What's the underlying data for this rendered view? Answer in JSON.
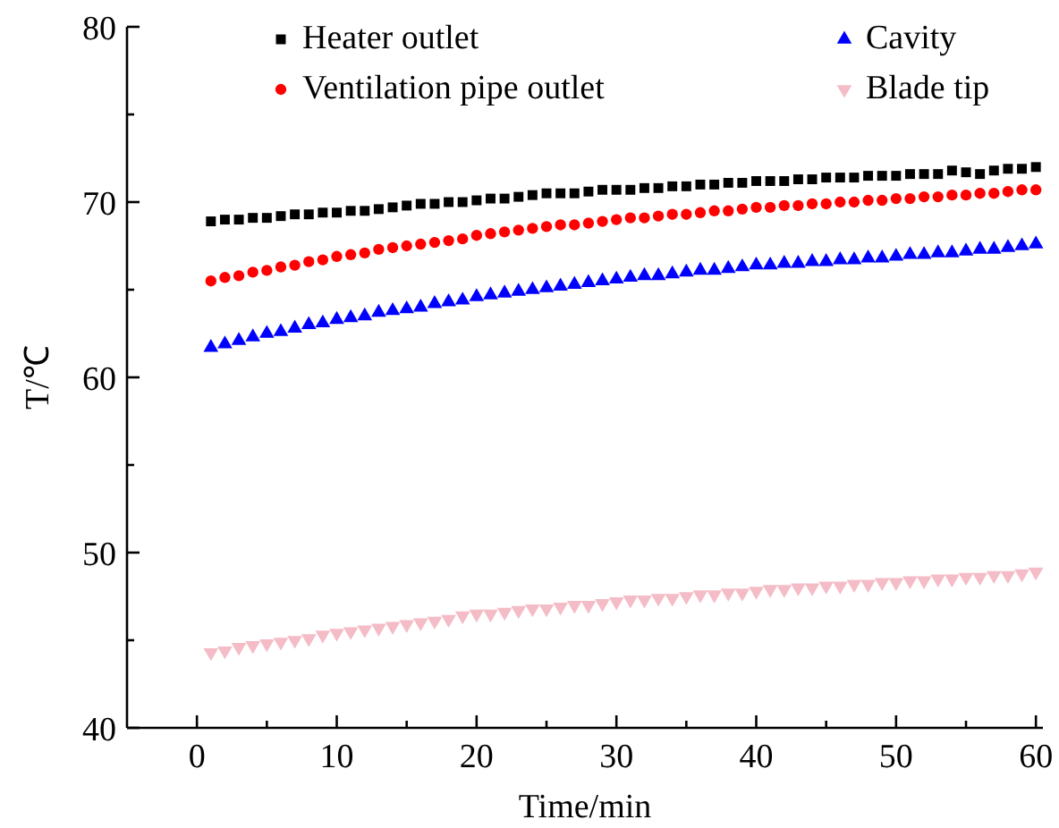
{
  "chart_data": {
    "type": "scatter",
    "xlabel": "Time/min",
    "ylabel": "T/℃",
    "xlim": [
      -5,
      60.5
    ],
    "ylim": [
      40,
      80
    ],
    "xticks": [
      0,
      {
        "value": 5,
        "label": null
      },
      10,
      {
        "value": 15,
        "label": null
      },
      20,
      {
        "value": 25,
        "label": null
      },
      30,
      {
        "value": 35,
        "label": null
      },
      40,
      {
        "value": 45,
        "label": null
      },
      50,
      {
        "value": 55,
        "label": null
      },
      60
    ],
    "yticks": [
      40,
      {
        "value": 45,
        "label": null
      },
      50,
      {
        "value": 55,
        "label": null
      },
      60,
      {
        "value": 65,
        "label": null
      },
      70,
      {
        "value": 75,
        "label": null
      },
      80
    ],
    "grid": false,
    "legend": "top",
    "x": [
      1,
      2,
      3,
      4,
      5,
      6,
      7,
      8,
      9,
      10,
      11,
      12,
      13,
      14,
      15,
      16,
      17,
      18,
      19,
      20,
      21,
      22,
      23,
      24,
      25,
      26,
      27,
      28,
      29,
      30,
      31,
      32,
      33,
      34,
      35,
      36,
      37,
      38,
      39,
      40,
      41,
      42,
      43,
      44,
      45,
      46,
      47,
      48,
      49,
      50,
      51,
      52,
      53,
      54,
      55,
      56,
      57,
      58,
      59,
      60
    ],
    "series": [
      {
        "name": "Heater outlet",
        "color": "#000000",
        "marker": "square",
        "values": [
          68.9,
          69.0,
          69.0,
          69.1,
          69.1,
          69.2,
          69.3,
          69.3,
          69.4,
          69.4,
          69.5,
          69.5,
          69.6,
          69.7,
          69.8,
          69.9,
          69.9,
          70.0,
          70.0,
          70.1,
          70.2,
          70.2,
          70.3,
          70.4,
          70.5,
          70.5,
          70.5,
          70.6,
          70.7,
          70.7,
          70.7,
          70.8,
          70.8,
          70.9,
          70.9,
          71.0,
          71.0,
          71.1,
          71.1,
          71.2,
          71.2,
          71.2,
          71.3,
          71.3,
          71.4,
          71.4,
          71.4,
          71.5,
          71.5,
          71.5,
          71.6,
          71.6,
          71.6,
          71.8,
          71.7,
          71.6,
          71.8,
          71.9,
          71.9,
          72.0
        ]
      },
      {
        "name": "Ventilation pipe outlet",
        "color": "#ff0000",
        "marker": "circle",
        "values": [
          65.5,
          65.7,
          65.8,
          66.0,
          66.1,
          66.3,
          66.4,
          66.6,
          66.7,
          66.9,
          67.0,
          67.1,
          67.3,
          67.4,
          67.5,
          67.6,
          67.7,
          67.8,
          67.9,
          68.1,
          68.2,
          68.3,
          68.4,
          68.5,
          68.6,
          68.7,
          68.7,
          68.8,
          68.9,
          69.0,
          69.1,
          69.1,
          69.2,
          69.3,
          69.3,
          69.4,
          69.5,
          69.5,
          69.6,
          69.7,
          69.7,
          69.8,
          69.8,
          69.9,
          69.9,
          70.0,
          70.0,
          70.1,
          70.1,
          70.2,
          70.2,
          70.3,
          70.3,
          70.4,
          70.4,
          70.5,
          70.5,
          70.6,
          70.7,
          70.7
        ]
      },
      {
        "name": "Cavity",
        "color": "#0000ff",
        "marker": "triangle",
        "values": [
          61.7,
          61.9,
          62.1,
          62.3,
          62.5,
          62.6,
          62.8,
          63.0,
          63.1,
          63.3,
          63.4,
          63.5,
          63.7,
          63.8,
          63.9,
          64.0,
          64.2,
          64.3,
          64.4,
          64.6,
          64.7,
          64.8,
          64.9,
          65.0,
          65.1,
          65.2,
          65.3,
          65.4,
          65.5,
          65.6,
          65.7,
          65.8,
          65.8,
          65.9,
          66.0,
          66.1,
          66.1,
          66.2,
          66.3,
          66.4,
          66.4,
          66.5,
          66.5,
          66.6,
          66.6,
          66.7,
          66.7,
          66.8,
          66.8,
          66.9,
          67.0,
          67.0,
          67.1,
          67.1,
          67.2,
          67.3,
          67.3,
          67.4,
          67.5,
          67.6
        ]
      },
      {
        "name": "Blade tip",
        "color": "#f4bcc6",
        "marker": "triangle-down",
        "values": [
          44.3,
          44.4,
          44.6,
          44.7,
          44.8,
          44.9,
          45.0,
          45.1,
          45.3,
          45.4,
          45.5,
          45.6,
          45.7,
          45.8,
          45.9,
          46.0,
          46.1,
          46.2,
          46.4,
          46.5,
          46.5,
          46.6,
          46.7,
          46.8,
          46.8,
          46.9,
          47.0,
          47.0,
          47.1,
          47.2,
          47.3,
          47.3,
          47.4,
          47.4,
          47.5,
          47.6,
          47.6,
          47.7,
          47.7,
          47.8,
          47.9,
          47.9,
          48.0,
          48.0,
          48.1,
          48.1,
          48.2,
          48.2,
          48.3,
          48.3,
          48.4,
          48.4,
          48.5,
          48.5,
          48.6,
          48.6,
          48.7,
          48.7,
          48.8,
          48.9
        ]
      }
    ]
  }
}
